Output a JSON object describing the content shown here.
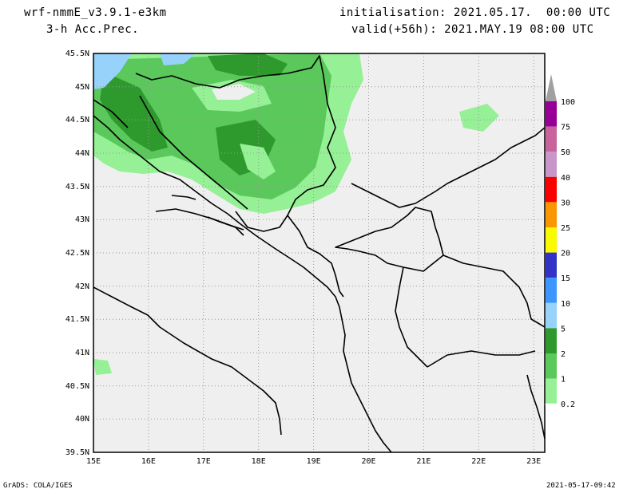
{
  "header": {
    "model": "wrf-nmmE_v3.9.1-e3km",
    "field": "3-h Acc.Prec.",
    "init": "initialisation: 2021.05.17.  00:00 UTC",
    "valid": "valid(+56h): 2021.MAY.19 08:00 UTC"
  },
  "map": {
    "lat_labels": [
      "45.5N",
      "45N",
      "44.5N",
      "44N",
      "43.5N",
      "43N",
      "42.5N",
      "42N",
      "41.5N",
      "41N",
      "40.5N",
      "40N",
      "39.5N"
    ],
    "lon_labels": [
      "15E",
      "16E",
      "17E",
      "18E",
      "19E",
      "20E",
      "21E",
      "22E",
      "23E"
    ],
    "lat_range": [
      39.5,
      45.5
    ],
    "lon_range": [
      15,
      23.2
    ],
    "colors": {
      "background": "#efefef",
      "land_light_green": "#96f096",
      "mid_green": "#5ac85a",
      "dark_green": "#2e9a2e",
      "light_blue": "#96d2fa"
    }
  },
  "colorbar": {
    "labels": [
      "100",
      "75",
      "50",
      "40",
      "30",
      "25",
      "20",
      "15",
      "10",
      "5",
      "2",
      "1",
      "0.2"
    ],
    "colors": [
      "#a0a0a0",
      "#960096",
      "#c8649b",
      "#c896c8",
      "#fa0000",
      "#fa9600",
      "#fafa00",
      "#3232c8",
      "#3c96ff",
      "#96d2fa",
      "#2e9a2e",
      "#5ac85a",
      "#96f096"
    ]
  },
  "footer": {
    "left": "GrADS: COLA/IGES",
    "right": "2021-05-17-09:42"
  }
}
